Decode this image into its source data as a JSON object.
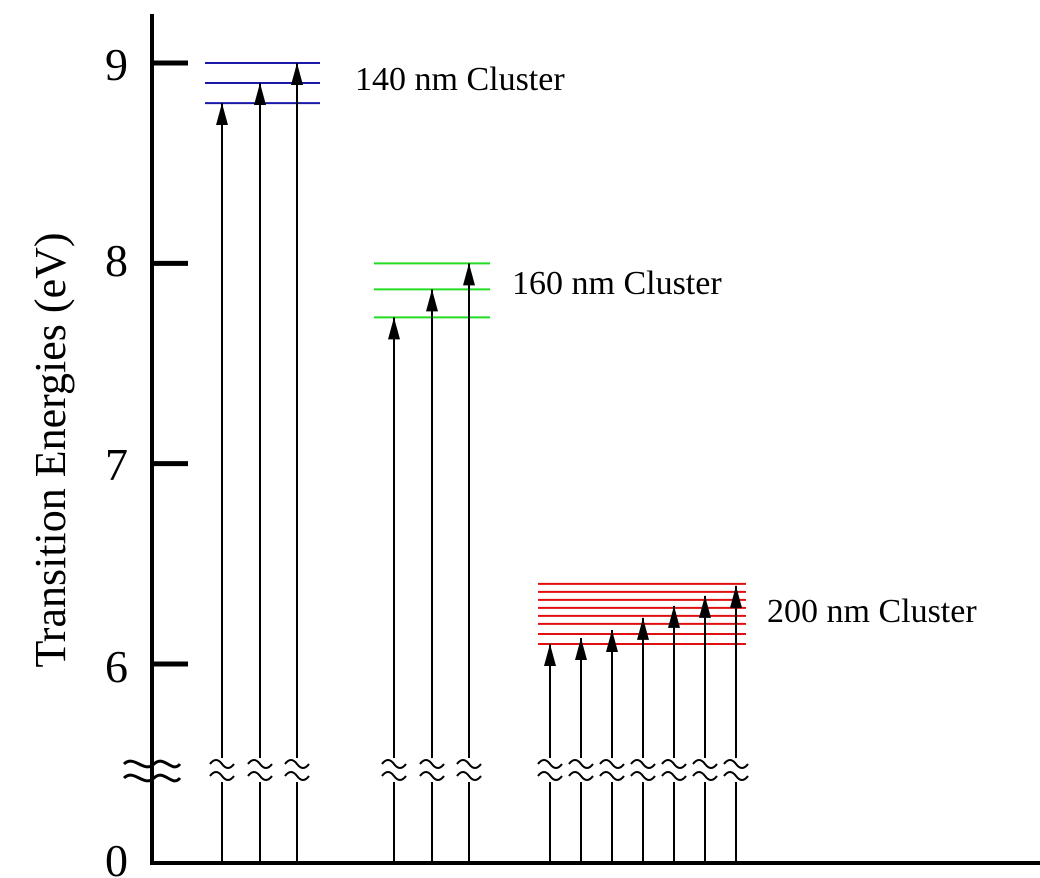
{
  "chart_data": {
    "type": "energy-level-diagram",
    "ylabel": "Transition Energies (eV)",
    "y_ticks": [
      "0",
      "6",
      "7",
      "8",
      "9"
    ],
    "axis_break": true,
    "clusters": [
      {
        "label": "140 nm Cluster",
        "color": "#1a1aa6",
        "levels": [
          8.8,
          8.9,
          9.0
        ],
        "transitions": [
          8.8,
          8.9,
          9.0
        ]
      },
      {
        "label": "160 nm Cluster",
        "color": "#22dd22",
        "levels": [
          7.73,
          7.87,
          8.0
        ],
        "transitions": [
          7.73,
          7.87,
          8.0
        ]
      },
      {
        "label": "200 nm Cluster",
        "color": "#e01010",
        "levels": [
          6.1,
          6.15,
          6.2,
          6.24,
          6.28,
          6.32,
          6.36,
          6.4
        ],
        "transitions": [
          6.1,
          6.13,
          6.17,
          6.23,
          6.29,
          6.34,
          6.39
        ]
      }
    ]
  }
}
